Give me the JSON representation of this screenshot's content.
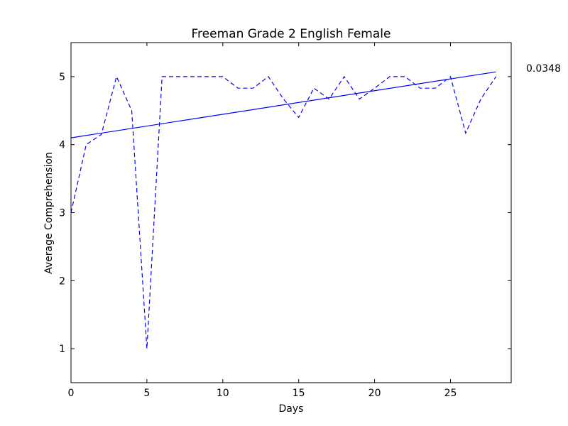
{
  "chart_data": {
    "type": "line",
    "title": "Freeman Grade 2 English Female",
    "xlabel": "Days",
    "ylabel": "Average Comprehension",
    "xlim": [
      0,
      29
    ],
    "ylim": [
      0.5,
      5.5
    ],
    "x_ticks": [
      0,
      5,
      10,
      15,
      20,
      25
    ],
    "y_ticks": [
      1,
      2,
      3,
      4,
      5
    ],
    "grid": false,
    "annotation": "0.0348",
    "series": [
      {
        "style": "dashed",
        "color": "#0000ff",
        "x": [
          0,
          1,
          2,
          3,
          4,
          5,
          6,
          7,
          8,
          9,
          10,
          11,
          12,
          13,
          14,
          15,
          16,
          17,
          18,
          19,
          20,
          21,
          22,
          23,
          24,
          25,
          26,
          27,
          28
        ],
        "y": [
          3.0,
          4.0,
          4.15,
          5.0,
          4.5,
          1.0,
          5.0,
          5.0,
          5.0,
          5.0,
          5.0,
          4.83,
          4.83,
          5.0,
          4.67,
          4.4,
          4.83,
          4.67,
          5.0,
          4.67,
          4.83,
          5.0,
          5.0,
          4.83,
          4.83,
          5.0,
          4.17,
          4.67,
          5.0
        ]
      },
      {
        "style": "solid",
        "color": "#0000ff",
        "x": [
          0,
          28
        ],
        "y": [
          4.1,
          5.07
        ]
      }
    ]
  }
}
